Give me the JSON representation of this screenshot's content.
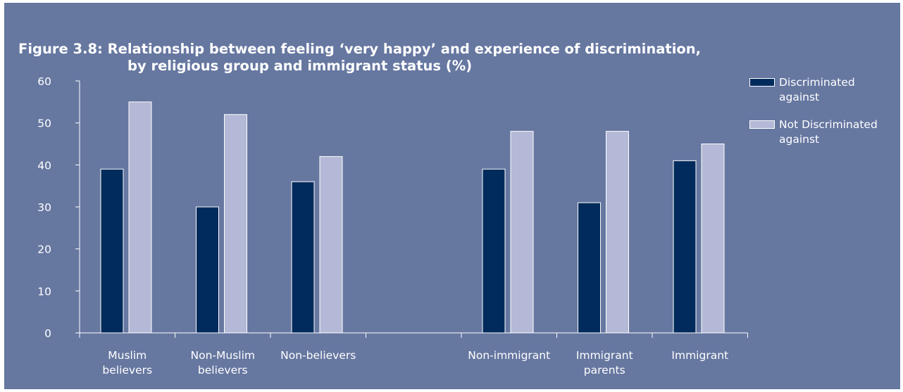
{
  "figure": {
    "title_line1": "Figure 3.8: Relationship between feeling ‘very happy’ and experience of discrimination,",
    "title_line2": "by religious group and immigrant status (%)",
    "background": "#6677a0"
  },
  "chart_data": {
    "type": "bar",
    "title": "Figure 3.8: Relationship between feeling ‘very happy’ and experience of discrimination, by religious group and immigrant status (%)",
    "xlabel": "",
    "ylabel": "",
    "ylim": [
      0,
      60
    ],
    "yticks": [
      0,
      10,
      20,
      30,
      40,
      50,
      60
    ],
    "grid": false,
    "legend_position": "right",
    "categories": [
      "Muslim believers",
      "Non-Muslim believers",
      "Non-believers",
      "",
      "Non-immigrant",
      "Immigrant parents",
      "Immigrant"
    ],
    "category_label_lines": [
      [
        "Muslim",
        "believers"
      ],
      [
        "Non-Muslim",
        "believers"
      ],
      [
        "Non-believers"
      ],
      [],
      [
        "Non-immigrant"
      ],
      [
        "Immigrant",
        "parents"
      ],
      [
        "Immigrant"
      ]
    ],
    "series": [
      {
        "name": "Discriminated against",
        "legend_lines": [
          "Discriminated",
          "against"
        ],
        "color": "#002b5c",
        "values": [
          39,
          30,
          36,
          null,
          39,
          31,
          41
        ]
      },
      {
        "name": "Not Discriminated against",
        "legend_lines": [
          "Not Discriminated",
          "against"
        ],
        "color": "#b3b9d6",
        "values": [
          55,
          52,
          42,
          null,
          48,
          48,
          45
        ]
      }
    ]
  }
}
